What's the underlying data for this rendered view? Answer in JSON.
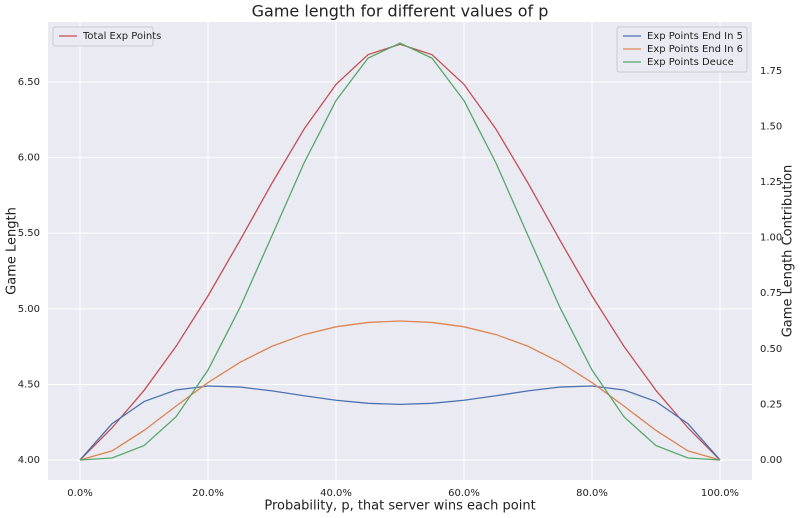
{
  "chart_data": {
    "type": "line",
    "title": "Game length for different values of p",
    "x_label": "Probability, p, that server wins each point",
    "y_label": "Game Length",
    "y2_label": "Game Length Contribution",
    "x": [
      0,
      5,
      10,
      15,
      20,
      25,
      30,
      35,
      40,
      45,
      50,
      55,
      60,
      65,
      70,
      75,
      80,
      85,
      90,
      95,
      100
    ],
    "series": [
      {
        "name": "Total Exp Points",
        "color": "#c44e52",
        "axis": "y",
        "values": [
          4.0,
          4.2128,
          4.4604,
          4.7513,
          5.0857,
          5.4531,
          5.8315,
          6.1882,
          6.4842,
          6.6809,
          6.75,
          6.6809,
          6.4842,
          6.1882,
          5.8315,
          5.4531,
          5.0857,
          4.7513,
          4.4604,
          4.2128,
          4.0
        ]
      },
      {
        "name": "Exp Points End In 5",
        "color": "#4c72b0",
        "axis": "y2",
        "values": [
          0.0,
          0.1629,
          0.2628,
          0.3149,
          0.3328,
          0.3281,
          0.3108,
          0.2889,
          0.2688,
          0.2549,
          0.25,
          0.2549,
          0.2688,
          0.2889,
          0.3108,
          0.3281,
          0.3328,
          0.3149,
          0.2628,
          0.1629,
          0.0
        ]
      },
      {
        "name": "Exp Points End In 6",
        "color": "#dd8452",
        "axis": "y2",
        "values": [
          0.0,
          0.0408,
          0.1328,
          0.2422,
          0.3482,
          0.4395,
          0.5116,
          0.5641,
          0.599,
          0.6187,
          0.625,
          0.6187,
          0.599,
          0.5641,
          0.5116,
          0.4395,
          0.3482,
          0.2422,
          0.1328,
          0.0408,
          0.0
        ]
      },
      {
        "name": "Exp Points Deuce",
        "color": "#55a868",
        "axis": "y2",
        "values": [
          0.0,
          0.009,
          0.0647,
          0.1942,
          0.4048,
          0.6855,
          1.0091,
          1.3352,
          1.6163,
          1.8073,
          1.875,
          1.8073,
          1.6163,
          1.3352,
          1.0091,
          0.6855,
          0.4048,
          0.1942,
          0.0647,
          0.009,
          0.0
        ]
      }
    ],
    "xlim": [
      -5,
      105
    ],
    "xticks": [
      {
        "value": 0,
        "label": "0.0%"
      },
      {
        "value": 20,
        "label": "20.0%"
      },
      {
        "value": 40,
        "label": "40.0%"
      },
      {
        "value": 60,
        "label": "60.0%"
      },
      {
        "value": 80,
        "label": "80.0%"
      },
      {
        "value": 100,
        "label": "100.0%"
      }
    ],
    "ylim": [
      3.868,
      6.897
    ],
    "yticks": [
      {
        "value": 4,
        "label": "4.00"
      },
      {
        "value": 4.5,
        "label": "4.50"
      },
      {
        "value": 5,
        "label": "5.00"
      },
      {
        "value": 5.5,
        "label": "5.50"
      },
      {
        "value": 6,
        "label": "6.00"
      },
      {
        "value": 6.5,
        "label": "6.50"
      }
    ],
    "y2lim": [
      -0.09,
      1.97
    ],
    "y2ticks": [
      {
        "value": 0,
        "label": "0.00"
      },
      {
        "value": 0.25,
        "label": "0.25"
      },
      {
        "value": 0.5,
        "label": "0.50"
      },
      {
        "value": 0.75,
        "label": "0.75"
      },
      {
        "value": 1,
        "label": "1.00"
      },
      {
        "value": 1.25,
        "label": "1.25"
      },
      {
        "value": 1.5,
        "label": "1.50"
      },
      {
        "value": 1.75,
        "label": "1.75"
      }
    ],
    "grid": true,
    "legend": "upper left",
    "legend_y2": "upper right"
  }
}
